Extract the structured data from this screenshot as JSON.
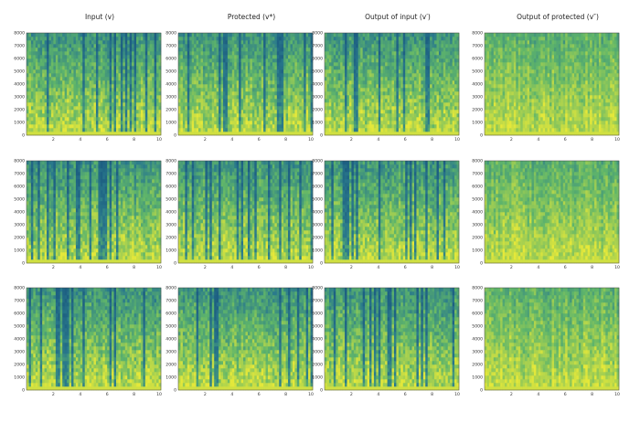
{
  "columns": [
    "Input (v)",
    "Protected (v*)",
    "Output of input (v′)",
    "Output of protected (v″)"
  ],
  "chart_data": {
    "type": "heatmap",
    "rows": 3,
    "cols": 4,
    "y_ticks": [
      0,
      1000,
      2000,
      3000,
      4000,
      5000,
      6000,
      7000,
      8000
    ],
    "x_ticks": [
      2,
      4,
      6,
      8,
      10
    ],
    "ylim": [
      0,
      8000
    ],
    "xlim": [
      0,
      10
    ],
    "colormap": "viridis",
    "colors": {
      "high": "#e4e83a",
      "mid": "#5fb56a",
      "low": "#2a7a8c",
      "deep": "#1d5f82"
    }
  }
}
